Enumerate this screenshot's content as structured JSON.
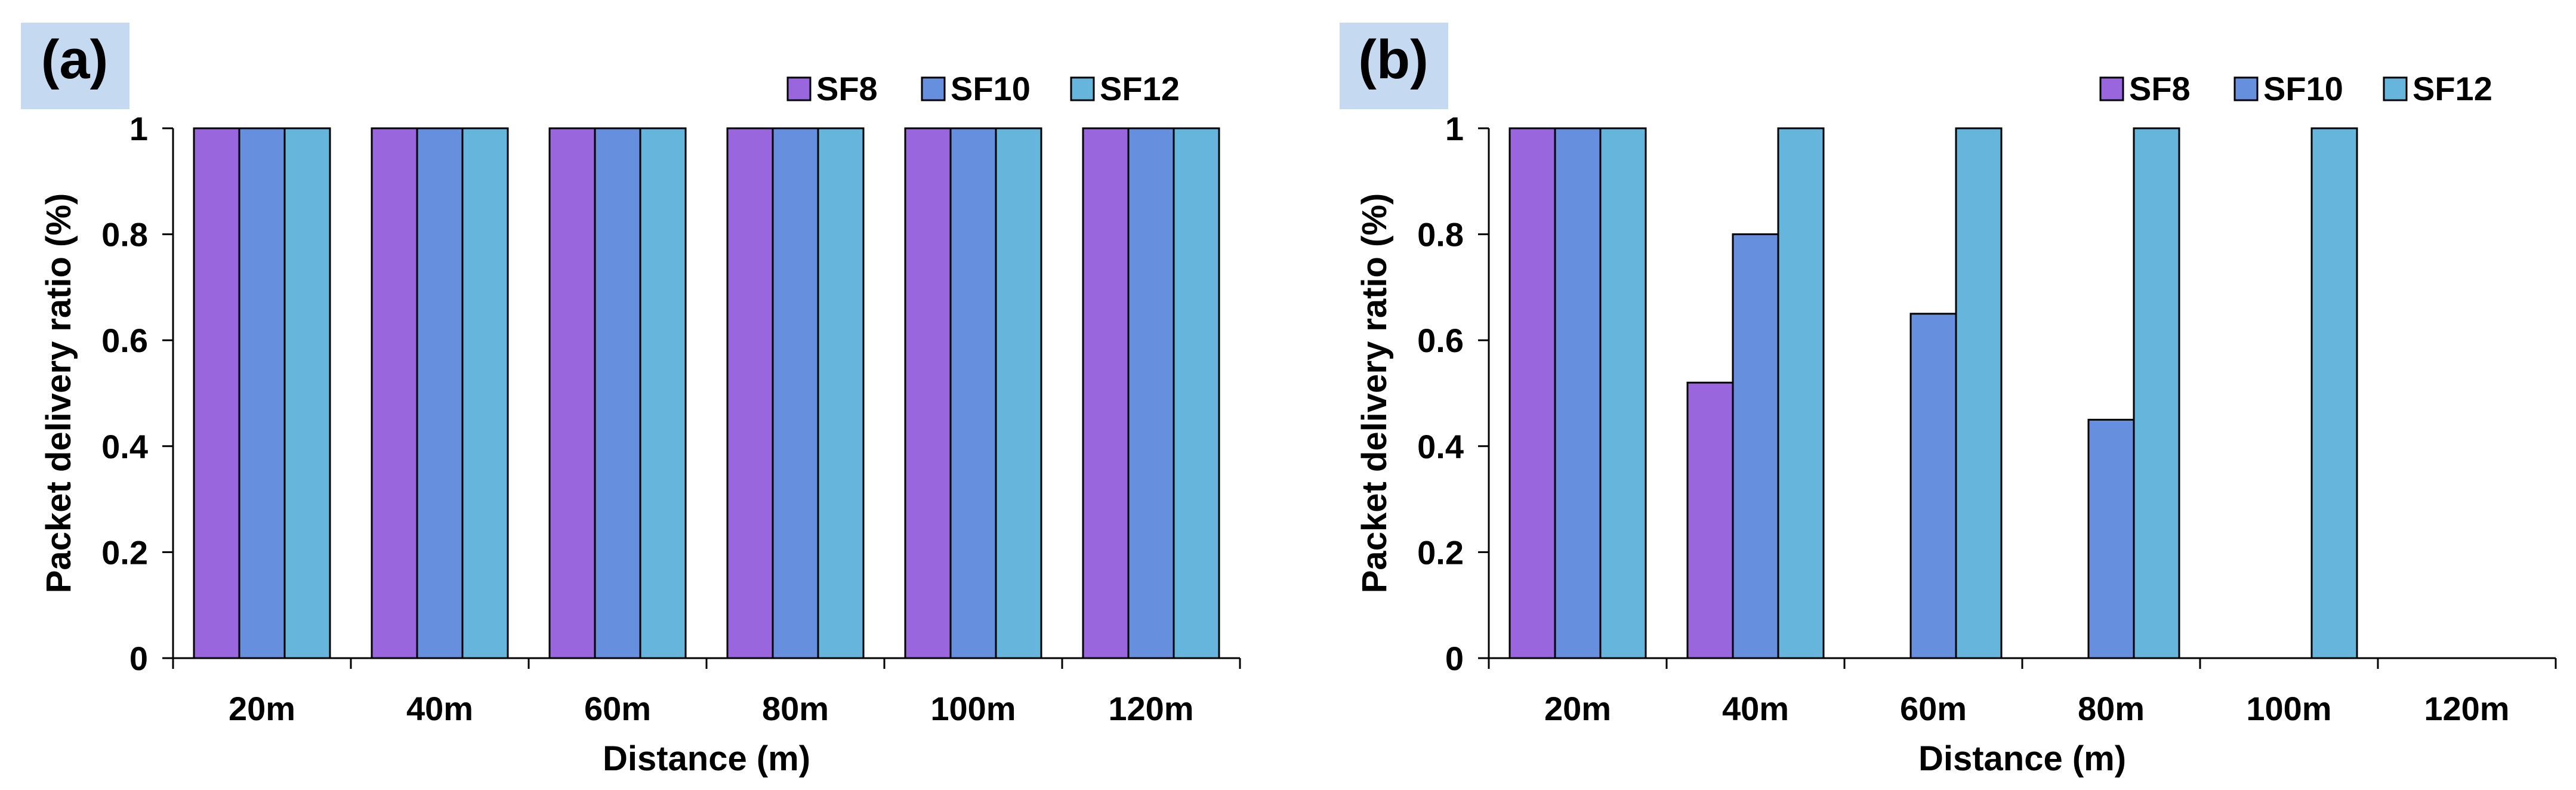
{
  "colors": {
    "SF8": "#9966dd",
    "SF10": "#6690dd",
    "SF12": "#66b5dd",
    "panel_label_bg": "#c5d9f1",
    "axis": "#000000"
  },
  "chart_data": [
    {
      "type": "bar",
      "panel_label": "(a)",
      "title": "",
      "xlabel": "Distance (m)",
      "ylabel": "Packet delivery ratio (%)",
      "ylim": [
        0,
        1
      ],
      "yticks": [
        "0",
        "0.2",
        "0.4",
        "0.6",
        "0.8",
        "1"
      ],
      "categories": [
        "20m",
        "40m",
        "60m",
        "80m",
        "100m",
        "120m"
      ],
      "legend_position": "top-right",
      "series": [
        {
          "name": "SF8",
          "values": [
            1,
            1,
            1,
            1,
            1,
            1
          ]
        },
        {
          "name": "SF10",
          "values": [
            1,
            1,
            1,
            1,
            1,
            1
          ]
        },
        {
          "name": "SF12",
          "values": [
            1,
            1,
            1,
            1,
            1,
            1
          ]
        }
      ]
    },
    {
      "type": "bar",
      "panel_label": "(b)",
      "title": "",
      "xlabel": "Distance (m)",
      "ylabel": "Packet delivery ratio (%)",
      "ylim": [
        0,
        1
      ],
      "yticks": [
        "0",
        "0.2",
        "0.4",
        "0.6",
        "0.8",
        "1"
      ],
      "categories": [
        "20m",
        "40m",
        "60m",
        "80m",
        "100m",
        "120m"
      ],
      "legend_position": "top-right",
      "series": [
        {
          "name": "SF8",
          "values": [
            1,
            0.52,
            0,
            0,
            0,
            0
          ]
        },
        {
          "name": "SF10",
          "values": [
            1,
            0.8,
            0.65,
            0.45,
            0,
            0
          ]
        },
        {
          "name": "SF12",
          "values": [
            1,
            1,
            1,
            1,
            1,
            0
          ]
        }
      ]
    }
  ]
}
